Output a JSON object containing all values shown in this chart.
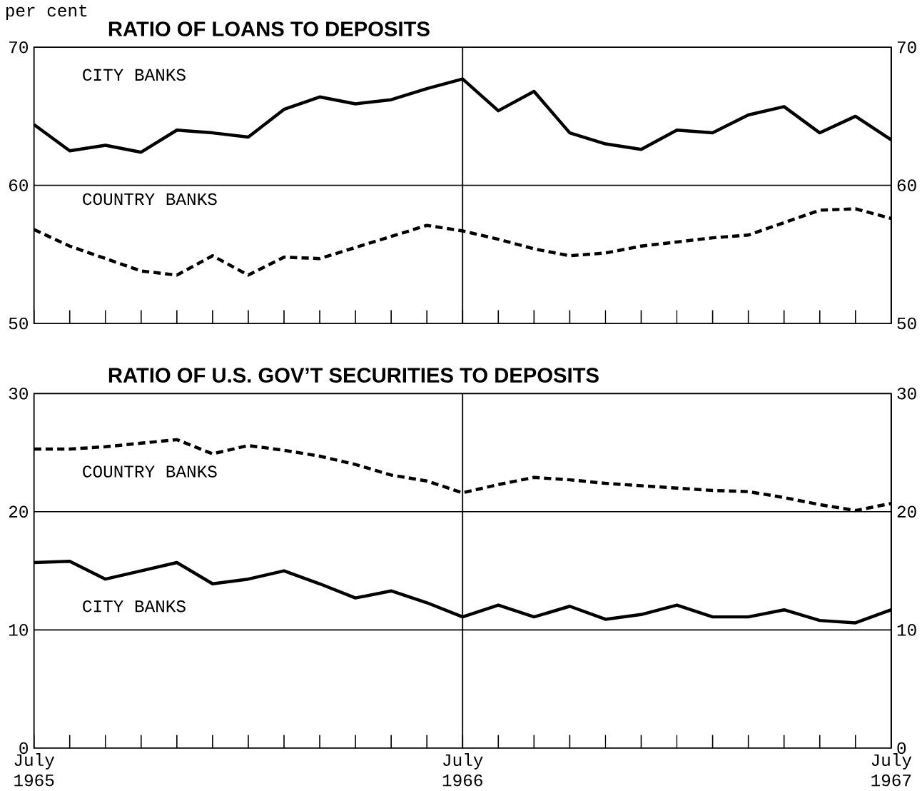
{
  "chart_data": [
    {
      "type": "line",
      "title": "RATIO OF LOANS TO DEPOSITS",
      "ylabel": "per cent",
      "x": [
        "1965-07",
        "1965-08",
        "1965-09",
        "1965-10",
        "1965-11",
        "1965-12",
        "1966-01",
        "1966-02",
        "1966-03",
        "1966-04",
        "1966-05",
        "1966-06",
        "1966-07",
        "1966-08",
        "1966-09",
        "1966-10",
        "1966-11",
        "1966-12",
        "1967-01",
        "1967-02",
        "1967-03",
        "1967-04",
        "1967-05",
        "1967-06",
        "1967-07"
      ],
      "series": [
        {
          "name": "CITY BANKS",
          "color": "#000000",
          "line_style": "solid",
          "values": [
            64.4,
            62.5,
            62.9,
            62.4,
            64.0,
            63.8,
            63.5,
            65.5,
            66.4,
            65.9,
            66.2,
            67.0,
            67.7,
            65.4,
            66.8,
            63.8,
            63.0,
            62.6,
            64.0,
            63.8,
            65.1,
            65.7,
            63.8,
            65.0,
            63.3
          ]
        },
        {
          "name": "COUNTRY BANKS",
          "color": "#000000",
          "line_style": "dashed",
          "values": [
            56.8,
            55.6,
            54.7,
            53.8,
            53.5,
            54.9,
            53.5,
            54.8,
            54.7,
            55.5,
            56.3,
            57.1,
            56.7,
            56.1,
            55.4,
            54.9,
            55.1,
            55.6,
            55.9,
            56.2,
            56.4,
            57.3,
            58.2,
            58.3,
            57.6
          ]
        }
      ],
      "xlim": [
        "1965-07",
        "1967-07"
      ],
      "xticks": [
        {
          "value": "1965-07",
          "label": null
        },
        {
          "value": "1965-08",
          "label": null
        },
        {
          "value": "1965-09",
          "label": null
        },
        {
          "value": "1965-10",
          "label": null
        },
        {
          "value": "1965-11",
          "label": null
        },
        {
          "value": "1965-12",
          "label": null
        },
        {
          "value": "1966-01",
          "label": null
        },
        {
          "value": "1966-02",
          "label": null
        },
        {
          "value": "1966-03",
          "label": null
        },
        {
          "value": "1966-04",
          "label": null
        },
        {
          "value": "1966-05",
          "label": null
        },
        {
          "value": "1966-06",
          "label": null
        },
        {
          "value": "1966-07",
          "label": null
        },
        {
          "value": "1966-08",
          "label": null
        },
        {
          "value": "1966-09",
          "label": null
        },
        {
          "value": "1966-10",
          "label": null
        },
        {
          "value": "1966-11",
          "label": null
        },
        {
          "value": "1966-12",
          "label": null
        },
        {
          "value": "1967-01",
          "label": null
        },
        {
          "value": "1967-02",
          "label": null
        },
        {
          "value": "1967-03",
          "label": null
        },
        {
          "value": "1967-04",
          "label": null
        },
        {
          "value": "1967-05",
          "label": null
        },
        {
          "value": "1967-06",
          "label": null
        },
        {
          "value": "1967-07",
          "label": null
        }
      ],
      "ylim": [
        50,
        70
      ],
      "yticks": [
        50,
        60,
        70
      ],
      "y2lim": [
        50,
        70
      ],
      "y2ticks": [
        50,
        60,
        70
      ],
      "marker": "none",
      "legend": false,
      "tick_labels": "y",
      "ref_lines": [
        {
          "axis": "x",
          "value": "1966-07",
          "color": "#000000"
        },
        {
          "axis": "y",
          "value": 60,
          "color": "#000000"
        }
      ]
    },
    {
      "type": "line",
      "title": "RATIO OF U.S. GOV’T SECURITIES TO DEPOSITS",
      "x": [
        "1965-07",
        "1965-08",
        "1965-09",
        "1965-10",
        "1965-11",
        "1965-12",
        "1966-01",
        "1966-02",
        "1966-03",
        "1966-04",
        "1966-05",
        "1966-06",
        "1966-07",
        "1966-08",
        "1966-09",
        "1966-10",
        "1966-11",
        "1966-12",
        "1967-01",
        "1967-02",
        "1967-03",
        "1967-04",
        "1967-05",
        "1967-06",
        "1967-07"
      ],
      "series": [
        {
          "name": "COUNTRY BANKS",
          "color": "#000000",
          "line_style": "dashed",
          "values": [
            25.3,
            25.3,
            25.5,
            25.8,
            26.1,
            24.9,
            25.6,
            25.2,
            24.7,
            24.0,
            23.1,
            22.6,
            21.6,
            22.3,
            22.9,
            22.7,
            22.4,
            22.2,
            22.0,
            21.8,
            21.7,
            21.2,
            20.6,
            20.1,
            20.7
          ]
        },
        {
          "name": "CITY BANKS",
          "color": "#000000",
          "line_style": "solid",
          "values": [
            15.7,
            15.8,
            14.3,
            15.0,
            15.7,
            13.9,
            14.3,
            15.0,
            13.9,
            12.7,
            13.3,
            12.3,
            11.1,
            12.1,
            11.1,
            12.0,
            10.9,
            11.3,
            12.1,
            11.1,
            11.1,
            11.7,
            10.8,
            10.6,
            11.7
          ]
        }
      ],
      "xlim": [
        "1965-07",
        "1967-07"
      ],
      "xticks": [
        {
          "value": "1965-07",
          "label": "July 1965"
        },
        {
          "value": "1965-08",
          "label": null
        },
        {
          "value": "1965-09",
          "label": null
        },
        {
          "value": "1965-10",
          "label": null
        },
        {
          "value": "1965-11",
          "label": null
        },
        {
          "value": "1965-12",
          "label": null
        },
        {
          "value": "1966-01",
          "label": null
        },
        {
          "value": "1966-02",
          "label": null
        },
        {
          "value": "1966-03",
          "label": null
        },
        {
          "value": "1966-04",
          "label": null
        },
        {
          "value": "1966-05",
          "label": null
        },
        {
          "value": "1966-06",
          "label": null
        },
        {
          "value": "1966-07",
          "label": "July 1966"
        },
        {
          "value": "1966-08",
          "label": null
        },
        {
          "value": "1966-09",
          "label": null
        },
        {
          "value": "1966-10",
          "label": null
        },
        {
          "value": "1966-11",
          "label": null
        },
        {
          "value": "1966-12",
          "label": null
        },
        {
          "value": "1967-01",
          "label": null
        },
        {
          "value": "1967-02",
          "label": null
        },
        {
          "value": "1967-03",
          "label": null
        },
        {
          "value": "1967-04",
          "label": null
        },
        {
          "value": "1967-05",
          "label": null
        },
        {
          "value": "1967-06",
          "label": null
        },
        {
          "value": "1967-07",
          "label": "July 1967"
        }
      ],
      "ylim": [
        0,
        30
      ],
      "yticks": [
        0,
        10,
        20,
        30
      ],
      "y2lim": [
        0,
        30
      ],
      "y2ticks": [
        0,
        10,
        20,
        30
      ],
      "grid": "y",
      "marker": "none",
      "legend": false,
      "ref_lines": [
        {
          "axis": "x",
          "value": "1966-07",
          "color": "#000000"
        }
      ]
    }
  ]
}
